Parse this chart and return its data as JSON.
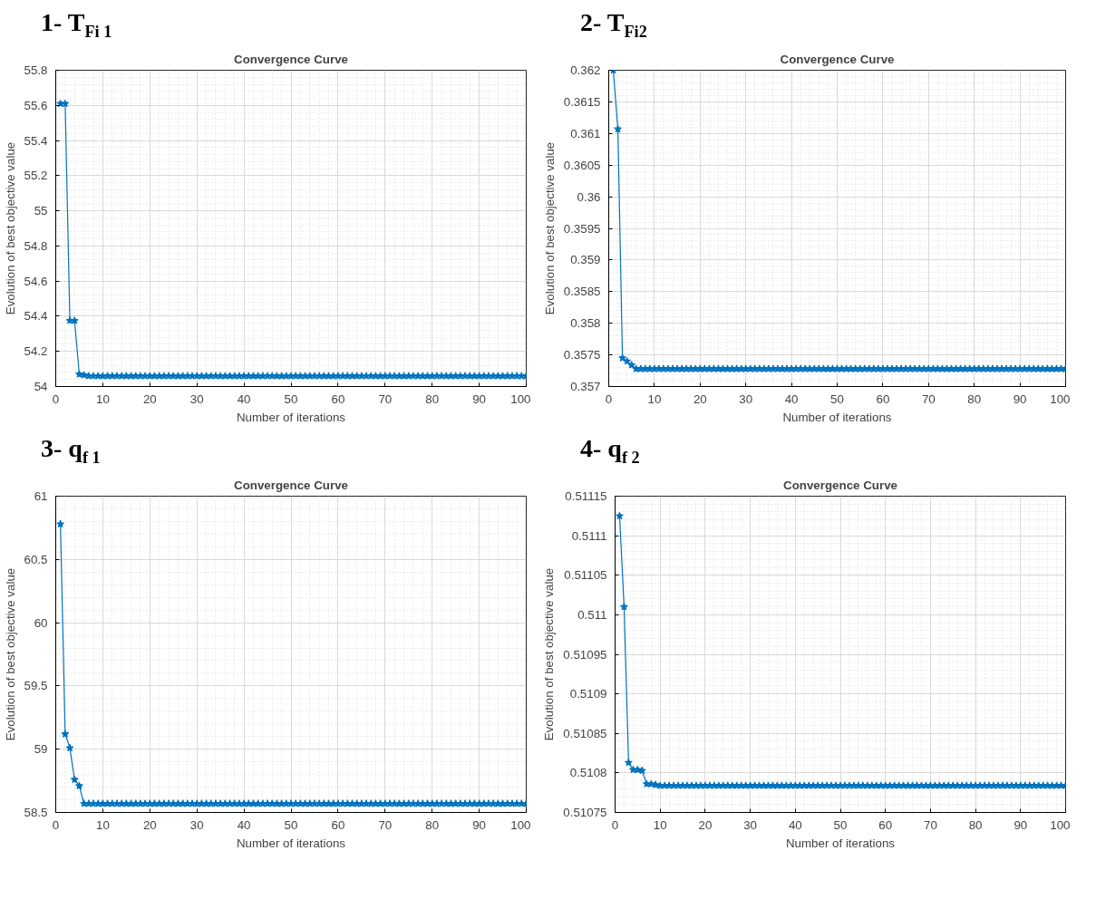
{
  "chart_data": [
    {
      "type": "line",
      "annotations": [
        "1- T$_{Fi 1}$"
      ],
      "title": "Convergence Curve",
      "xlabel": "Number of iterations",
      "ylabel": "Evolution of best objective value",
      "xlim": [
        0,
        100
      ],
      "xticks": [
        0,
        10,
        20,
        30,
        40,
        50,
        60,
        70,
        80,
        90,
        100
      ],
      "ylim": [
        54,
        55.8
      ],
      "yticks": [
        54,
        54.2,
        54.4,
        54.6,
        54.8,
        55,
        55.2,
        55.4,
        55.6,
        55.8
      ],
      "grid": true,
      "marker": "star",
      "line_style": "solid",
      "x": [
        1,
        2,
        3,
        4,
        5,
        6,
        7,
        8,
        9,
        10,
        11,
        12,
        13,
        14,
        15,
        16,
        17,
        18,
        19,
        20,
        21,
        22,
        23,
        24,
        25,
        26,
        27,
        28,
        29,
        30,
        31,
        32,
        33,
        34,
        35,
        36,
        37,
        38,
        39,
        40,
        41,
        42,
        43,
        44,
        45,
        46,
        47,
        48,
        49,
        50,
        51,
        52,
        53,
        54,
        55,
        56,
        57,
        58,
        59,
        60,
        61,
        62,
        63,
        64,
        65,
        66,
        67,
        68,
        69,
        70,
        71,
        72,
        73,
        74,
        75,
        76,
        77,
        78,
        79,
        80,
        81,
        82,
        83,
        84,
        85,
        86,
        87,
        88,
        89,
        90,
        91,
        92,
        93,
        94,
        95,
        96,
        97,
        98,
        99,
        100
      ],
      "series": [
        {
          "color": "#0072bd",
          "values": [
            55.61,
            55.61,
            54.375,
            54.375,
            54.07,
            54.065,
            54.06,
            54.06,
            54.06,
            54.06,
            54.06,
            54.06,
            54.06,
            54.06,
            54.06,
            54.06,
            54.06,
            54.06,
            54.06,
            54.06,
            54.06,
            54.06,
            54.06,
            54.06,
            54.06,
            54.06,
            54.06,
            54.06,
            54.06,
            54.06,
            54.06,
            54.06,
            54.06,
            54.06,
            54.06,
            54.06,
            54.06,
            54.06,
            54.06,
            54.06,
            54.06,
            54.06,
            54.06,
            54.06,
            54.06,
            54.06,
            54.06,
            54.06,
            54.06,
            54.06,
            54.06,
            54.06,
            54.06,
            54.06,
            54.06,
            54.06,
            54.06,
            54.06,
            54.06,
            54.06,
            54.06,
            54.06,
            54.06,
            54.06,
            54.06,
            54.06,
            54.06,
            54.06,
            54.06,
            54.06,
            54.06,
            54.06,
            54.06,
            54.06,
            54.06,
            54.06,
            54.06,
            54.06,
            54.06,
            54.06,
            54.06,
            54.06,
            54.06,
            54.06,
            54.06,
            54.06,
            54.06,
            54.06,
            54.06,
            54.06,
            54.06,
            54.06,
            54.06,
            54.06,
            54.06,
            54.06,
            54.06,
            54.06,
            54.06,
            54.06
          ]
        }
      ]
    },
    {
      "type": "line",
      "annotations": [
        "2- T$_{Fi2}$"
      ],
      "title": "Convergence Curve",
      "xlabel": "Number of iterations",
      "ylabel": "Evolution of best objective value",
      "xlim": [
        0,
        100
      ],
      "xticks": [
        0,
        10,
        20,
        30,
        40,
        50,
        60,
        70,
        80,
        90,
        100
      ],
      "ylim": [
        0.357,
        0.362
      ],
      "yticks": [
        0.357,
        0.3575,
        0.358,
        0.3585,
        0.359,
        0.3595,
        0.36,
        0.3605,
        0.361,
        0.3615,
        0.362
      ],
      "grid": true,
      "marker": "star",
      "line_style": "solid",
      "x": [
        1,
        2,
        3,
        4,
        5,
        6,
        7,
        8,
        9,
        10,
        11,
        12,
        13,
        14,
        15,
        16,
        17,
        18,
        19,
        20,
        21,
        22,
        23,
        24,
        25,
        26,
        27,
        28,
        29,
        30,
        31,
        32,
        33,
        34,
        35,
        36,
        37,
        38,
        39,
        40,
        41,
        42,
        43,
        44,
        45,
        46,
        47,
        48,
        49,
        50,
        51,
        52,
        53,
        54,
        55,
        56,
        57,
        58,
        59,
        60,
        61,
        62,
        63,
        64,
        65,
        66,
        67,
        68,
        69,
        70,
        71,
        72,
        73,
        74,
        75,
        76,
        77,
        78,
        79,
        80,
        81,
        82,
        83,
        84,
        85,
        86,
        87,
        88,
        89,
        90,
        91,
        92,
        93,
        94,
        95,
        96,
        97,
        98,
        99,
        100
      ],
      "series": [
        {
          "color": "#0072bd",
          "values": [
            0.362,
            0.36107,
            0.35745,
            0.3574,
            0.35734,
            0.35728,
            0.35728,
            0.35728,
            0.35728,
            0.35728,
            0.35728,
            0.35728,
            0.35728,
            0.35728,
            0.35728,
            0.35728,
            0.35728,
            0.35728,
            0.35728,
            0.35728,
            0.35728,
            0.35728,
            0.35728,
            0.35728,
            0.35728,
            0.35728,
            0.35728,
            0.35728,
            0.35728,
            0.35728,
            0.35728,
            0.35728,
            0.35728,
            0.35728,
            0.35728,
            0.35728,
            0.35728,
            0.35728,
            0.35728,
            0.35728,
            0.35728,
            0.35728,
            0.35728,
            0.35728,
            0.35728,
            0.35728,
            0.35728,
            0.35728,
            0.35728,
            0.35728,
            0.35728,
            0.35728,
            0.35728,
            0.35728,
            0.35728,
            0.35728,
            0.35728,
            0.35728,
            0.35728,
            0.35728,
            0.35728,
            0.35728,
            0.35728,
            0.35728,
            0.35728,
            0.35728,
            0.35728,
            0.35728,
            0.35728,
            0.35728,
            0.35728,
            0.35728,
            0.35728,
            0.35728,
            0.35728,
            0.35728,
            0.35728,
            0.35728,
            0.35728,
            0.35728,
            0.35728,
            0.35728,
            0.35728,
            0.35728,
            0.35728,
            0.35728,
            0.35728,
            0.35728,
            0.35728,
            0.35728,
            0.35728,
            0.35728,
            0.35728,
            0.35728,
            0.35728,
            0.35728,
            0.35728,
            0.35728,
            0.35728,
            0.35728
          ]
        }
      ]
    },
    {
      "type": "line",
      "annotations": [
        "3- q$_{f 1}$"
      ],
      "title": "Convergence Curve",
      "xlabel": "Number of iterations",
      "ylabel": "Evolution of best objective value",
      "xlim": [
        0,
        100
      ],
      "xticks": [
        0,
        10,
        20,
        30,
        40,
        50,
        60,
        70,
        80,
        90,
        100
      ],
      "ylim": [
        58.5,
        61
      ],
      "yticks": [
        58.5,
        59,
        59.5,
        60,
        60.5,
        61
      ],
      "grid": true,
      "marker": "star",
      "line_style": "solid",
      "x": [
        1,
        2,
        3,
        4,
        5,
        6,
        7,
        8,
        9,
        10,
        11,
        12,
        13,
        14,
        15,
        16,
        17,
        18,
        19,
        20,
        21,
        22,
        23,
        24,
        25,
        26,
        27,
        28,
        29,
        30,
        31,
        32,
        33,
        34,
        35,
        36,
        37,
        38,
        39,
        40,
        41,
        42,
        43,
        44,
        45,
        46,
        47,
        48,
        49,
        50,
        51,
        52,
        53,
        54,
        55,
        56,
        57,
        58,
        59,
        60,
        61,
        62,
        63,
        64,
        65,
        66,
        67,
        68,
        69,
        70,
        71,
        72,
        73,
        74,
        75,
        76,
        77,
        78,
        79,
        80,
        81,
        82,
        83,
        84,
        85,
        86,
        87,
        88,
        89,
        90,
        91,
        92,
        93,
        94,
        95,
        96,
        97,
        98,
        99,
        100
      ],
      "series": [
        {
          "color": "#0072bd",
          "values": [
            60.78,
            59.12,
            59.01,
            58.76,
            58.71,
            58.57,
            58.57,
            58.57,
            58.57,
            58.57,
            58.57,
            58.57,
            58.57,
            58.57,
            58.57,
            58.57,
            58.57,
            58.57,
            58.57,
            58.57,
            58.57,
            58.57,
            58.57,
            58.57,
            58.57,
            58.57,
            58.57,
            58.57,
            58.57,
            58.57,
            58.57,
            58.57,
            58.57,
            58.57,
            58.57,
            58.57,
            58.57,
            58.57,
            58.57,
            58.57,
            58.57,
            58.57,
            58.57,
            58.57,
            58.57,
            58.57,
            58.57,
            58.57,
            58.57,
            58.57,
            58.57,
            58.57,
            58.57,
            58.57,
            58.57,
            58.57,
            58.57,
            58.57,
            58.57,
            58.57,
            58.57,
            58.57,
            58.57,
            58.57,
            58.57,
            58.57,
            58.57,
            58.57,
            58.57,
            58.57,
            58.57,
            58.57,
            58.57,
            58.57,
            58.57,
            58.57,
            58.57,
            58.57,
            58.57,
            58.57,
            58.57,
            58.57,
            58.57,
            58.57,
            58.57,
            58.57,
            58.57,
            58.57,
            58.57,
            58.57,
            58.57,
            58.57,
            58.57,
            58.57,
            58.57,
            58.57,
            58.57,
            58.57,
            58.57,
            58.57
          ]
        }
      ]
    },
    {
      "type": "line",
      "annotations": [
        "4- q$_{f 2}$"
      ],
      "title": "Convergence Curve",
      "xlabel": "Number of iterations",
      "ylabel": "Evolution of best objective value",
      "xlim": [
        0,
        100
      ],
      "xticks": [
        0,
        10,
        20,
        30,
        40,
        50,
        60,
        70,
        80,
        90,
        100
      ],
      "ylim": [
        0.51075,
        0.51115
      ],
      "yticks": [
        0.51075,
        0.5108,
        0.51085,
        0.5109,
        0.51095,
        0.511,
        0.51105,
        0.5111,
        0.51115
      ],
      "grid": true,
      "marker": "star",
      "line_style": "solid",
      "x": [
        1,
        2,
        3,
        4,
        5,
        6,
        7,
        8,
        9,
        10,
        11,
        12,
        13,
        14,
        15,
        16,
        17,
        18,
        19,
        20,
        21,
        22,
        23,
        24,
        25,
        26,
        27,
        28,
        29,
        30,
        31,
        32,
        33,
        34,
        35,
        36,
        37,
        38,
        39,
        40,
        41,
        42,
        43,
        44,
        45,
        46,
        47,
        48,
        49,
        50,
        51,
        52,
        53,
        54,
        55,
        56,
        57,
        58,
        59,
        60,
        61,
        62,
        63,
        64,
        65,
        66,
        67,
        68,
        69,
        70,
        71,
        72,
        73,
        74,
        75,
        76,
        77,
        78,
        79,
        80,
        81,
        82,
        83,
        84,
        85,
        86,
        87,
        88,
        89,
        90,
        91,
        92,
        93,
        94,
        95,
        96,
        97,
        98,
        99,
        100
      ],
      "series": [
        {
          "color": "#0072bd",
          "values": [
            0.511125,
            0.51101,
            0.510813,
            0.510804,
            0.510804,
            0.510803,
            0.510786,
            0.510786,
            0.510785,
            0.510784,
            0.510784,
            0.510784,
            0.510784,
            0.510784,
            0.510784,
            0.510784,
            0.510784,
            0.510784,
            0.510784,
            0.510784,
            0.510784,
            0.510784,
            0.510784,
            0.510784,
            0.510784,
            0.510784,
            0.510784,
            0.510784,
            0.510784,
            0.510784,
            0.510784,
            0.510784,
            0.510784,
            0.510784,
            0.510784,
            0.510784,
            0.510784,
            0.510784,
            0.510784,
            0.510784,
            0.510784,
            0.510784,
            0.510784,
            0.510784,
            0.510784,
            0.510784,
            0.510784,
            0.510784,
            0.510784,
            0.510784,
            0.510784,
            0.510784,
            0.510784,
            0.510784,
            0.510784,
            0.510784,
            0.510784,
            0.510784,
            0.510784,
            0.510784,
            0.510784,
            0.510784,
            0.510784,
            0.510784,
            0.510784,
            0.510784,
            0.510784,
            0.510784,
            0.510784,
            0.510784,
            0.510784,
            0.510784,
            0.510784,
            0.510784,
            0.510784,
            0.510784,
            0.510784,
            0.510784,
            0.510784,
            0.510784,
            0.510784,
            0.510784,
            0.510784,
            0.510784,
            0.510784,
            0.510784,
            0.510784,
            0.510784,
            0.510784,
            0.510784,
            0.510784,
            0.510784,
            0.510784,
            0.510784,
            0.510784,
            0.510784,
            0.510784,
            0.510784,
            0.510784,
            0.510784
          ]
        }
      ]
    }
  ]
}
